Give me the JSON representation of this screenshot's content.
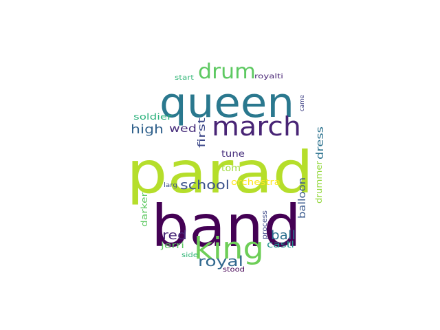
{
  "words": [
    {
      "text": "parad",
      "color": "#b5de2b"
    },
    {
      "text": "band",
      "color": "#440154"
    },
    {
      "text": "queen",
      "color": "#2a788e"
    },
    {
      "text": "march",
      "color": "#482475"
    },
    {
      "text": "king",
      "color": "#6ece58"
    },
    {
      "text": "drum",
      "color": "#5ec962"
    },
    {
      "text": "school",
      "color": "#3b528b"
    },
    {
      "text": "royal",
      "color": "#31688e"
    },
    {
      "text": "high",
      "color": "#33638d"
    },
    {
      "text": "wed",
      "color": "#472d7b"
    },
    {
      "text": "red",
      "color": "#482878"
    },
    {
      "text": "ball",
      "color": "#2d708e"
    },
    {
      "text": "first",
      "color": "#3e4989"
    },
    {
      "text": "dress",
      "color": "#2c728e"
    },
    {
      "text": "tune",
      "color": "#472f7d"
    },
    {
      "text": "tom",
      "color": "#9fda3a"
    },
    {
      "text": "orchestra",
      "color": "#fde725"
    },
    {
      "text": "balloon",
      "color": "#38588c"
    },
    {
      "text": "drummer",
      "color": "#95d840"
    },
    {
      "text": "soldier",
      "color": "#2db27d"
    },
    {
      "text": "darker",
      "color": "#5ec962"
    },
    {
      "text": "castl",
      "color": "#21918c"
    },
    {
      "text": "jerri",
      "color": "#5ec962"
    },
    {
      "text": "process",
      "color": "#3e4989"
    },
    {
      "text": "start",
      "color": "#35b779"
    },
    {
      "text": "royalti",
      "color": "#482475"
    },
    {
      "text": "came",
      "color": "#414487"
    },
    {
      "text": "larg",
      "color": "#3b528b"
    },
    {
      "text": "side",
      "color": "#35b779"
    },
    {
      "text": "stood",
      "color": "#440154"
    }
  ]
}
